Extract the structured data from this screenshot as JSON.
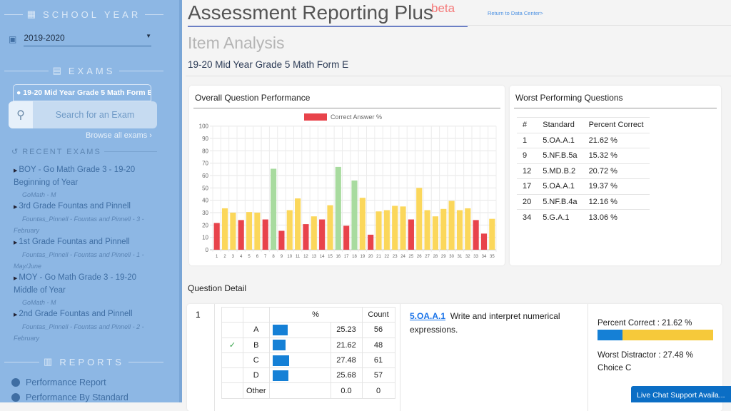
{
  "sidebar": {
    "school_year_heading": "SCHOOL YEAR",
    "school_year_value": "2019-2020",
    "exams_heading": "EXAMS",
    "selected_exam": "19-20 Mid Year Grade 5 Math Form E",
    "search_placeholder": "Search for an Exam",
    "browse_all": "Browse all exams",
    "recent_heading": "RECENT EXAMS",
    "recent": [
      {
        "title": "BOY - Go Math Grade 3 - 19-20 Beginning of Year",
        "sub": "GoMath - M"
      },
      {
        "title": "3rd Grade Fountas and Pinnell",
        "sub": "Fountas_Pinnell - Fountas and Pinnell - 3 - February"
      },
      {
        "title": "1st Grade Fountas and Pinnell",
        "sub": "Fountas_Pinnell - Fountas and Pinnell - 1 - May/June"
      },
      {
        "title": "MOY - Go Math Grade 3 - 19-20 Middle of Year",
        "sub": "GoMath - M"
      },
      {
        "title": "2nd Grade Fountas and Pinnell",
        "sub": "Fountas_Pinnell - Fountas and Pinnell - 2 - February"
      }
    ],
    "reports_heading": "REPORTS",
    "reports": [
      "Performance Report",
      "Performance By Standard"
    ]
  },
  "header": {
    "title": "Assessment Reporting Plus",
    "beta": "beta",
    "return_link": "Return to Data Center>",
    "page": "Item Analysis",
    "exam": "19-20 Mid Year Grade 5 Math Form E"
  },
  "overall": {
    "title": "Overall Question Performance"
  },
  "chart_data": {
    "type": "bar",
    "legend": "Correct Answer %",
    "legend_position": "top",
    "categories": [
      "1",
      "2",
      "3",
      "4",
      "5",
      "6",
      "7",
      "8",
      "9",
      "10",
      "11",
      "12",
      "13",
      "14",
      "15",
      "16",
      "17",
      "18",
      "19",
      "20",
      "21",
      "22",
      "23",
      "24",
      "25",
      "26",
      "27",
      "28",
      "29",
      "30",
      "31",
      "32",
      "33",
      "34",
      "35"
    ],
    "values": [
      21.62,
      33.5,
      30,
      24,
      30.5,
      30,
      24.5,
      65.5,
      15.32,
      32,
      41.5,
      20.72,
      27,
      24.5,
      36,
      67,
      19.37,
      56,
      42,
      12.16,
      31,
      32,
      35.5,
      35,
      24.5,
      50,
      32,
      27,
      33,
      39.5,
      32,
      33.5,
      24,
      13.06,
      25
    ],
    "ylim": [
      0,
      100
    ],
    "yticks": [
      "0",
      "10",
      "20",
      "30",
      "40",
      "50",
      "60",
      "70",
      "80",
      "90",
      "100"
    ],
    "grid": true,
    "colors": {
      "low": "#e8434b",
      "mid": "#fbd75b",
      "high": "#a8db9f"
    }
  },
  "worst": {
    "title": "Worst Performing Questions",
    "headers": [
      "#",
      "Standard",
      "Percent Correct"
    ],
    "rows": [
      [
        "1",
        "5.OA.A.1",
        "21.62 %"
      ],
      [
        "9",
        "5.NF.B.5a",
        "15.32 %"
      ],
      [
        "12",
        "5.MD.B.2",
        "20.72 %"
      ],
      [
        "17",
        "5.OA.A.1",
        "19.37 %"
      ],
      [
        "20",
        "5.NF.B.4a",
        "12.16 %"
      ],
      [
        "34",
        "5.G.A.1",
        "13.06 %"
      ]
    ]
  },
  "detail": {
    "heading": "Question Detail",
    "number": "1",
    "pct_header": "%",
    "count_header": "Count",
    "choices": [
      {
        "label": "A",
        "pct": "25.23",
        "count": "56",
        "correct": false
      },
      {
        "label": "B",
        "pct": "21.62",
        "count": "48",
        "correct": true
      },
      {
        "label": "C",
        "pct": "27.48",
        "count": "61",
        "correct": false
      },
      {
        "label": "D",
        "pct": "25.68",
        "count": "57",
        "correct": false
      },
      {
        "label": "Other",
        "pct": "0.0",
        "count": "0",
        "correct": false
      }
    ],
    "check": "✓",
    "standard": "5.OA.A.1",
    "description": "Write and interpret numerical expressions.",
    "percent_correct": "Percent Correct : 21.62 %",
    "percent_correct_value": 21.62,
    "worst_distractor": "Worst Distractor : 27.48 %",
    "worst_choice": "Choice C"
  },
  "chat": "Live Chat Support Availa..."
}
